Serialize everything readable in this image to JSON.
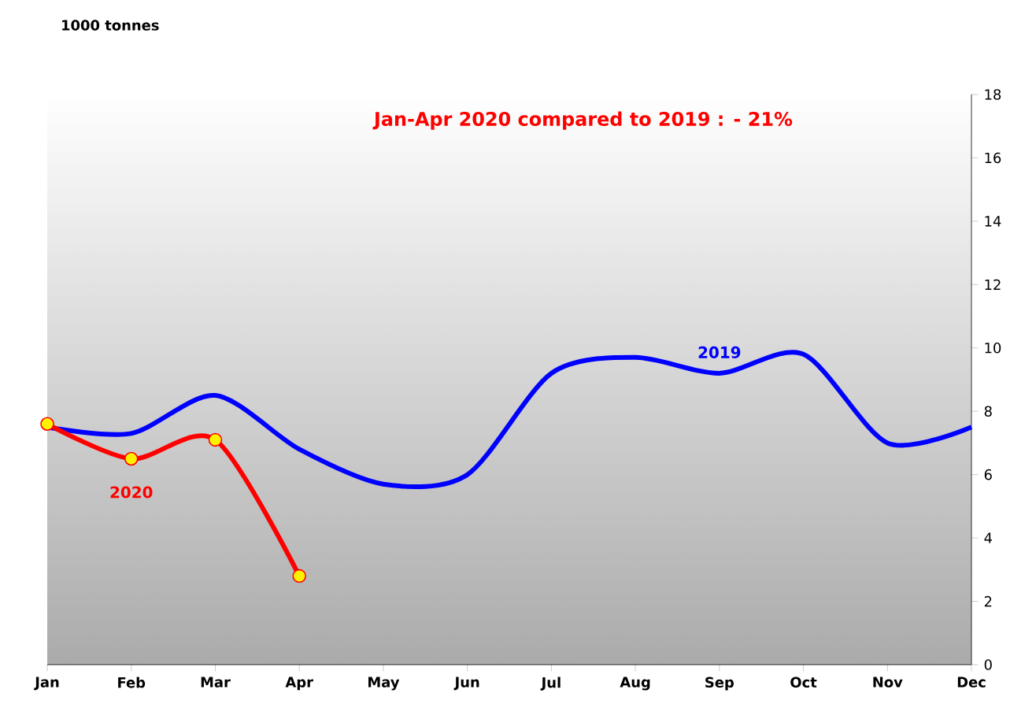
{
  "chart_data": {
    "type": "line",
    "title": "Jan-Apr 2020 compared to 2019 : - 21%",
    "ylabel": "1000 tonnes",
    "categories": [
      "Jan",
      "Feb",
      "Mar",
      "Apr",
      "May",
      "Jun",
      "Jul",
      "Aug",
      "Sep",
      "Oct",
      "Nov",
      "Dec"
    ],
    "series": [
      {
        "name": "2019",
        "color": "#0000ff",
        "values": [
          7.5,
          7.3,
          8.5,
          6.8,
          5.7,
          6.0,
          9.2,
          9.7,
          9.2,
          9.8,
          7.0,
          7.5
        ]
      },
      {
        "name": "2020",
        "color": "#ff0000",
        "marker": "circle",
        "values": [
          7.6,
          6.5,
          7.1,
          2.8,
          null,
          null,
          null,
          null,
          null,
          null,
          null,
          null
        ]
      }
    ],
    "ylim": [
      0,
      18
    ],
    "yticks": [
      0,
      2,
      4,
      6,
      8,
      10,
      12,
      14,
      16,
      18
    ]
  }
}
